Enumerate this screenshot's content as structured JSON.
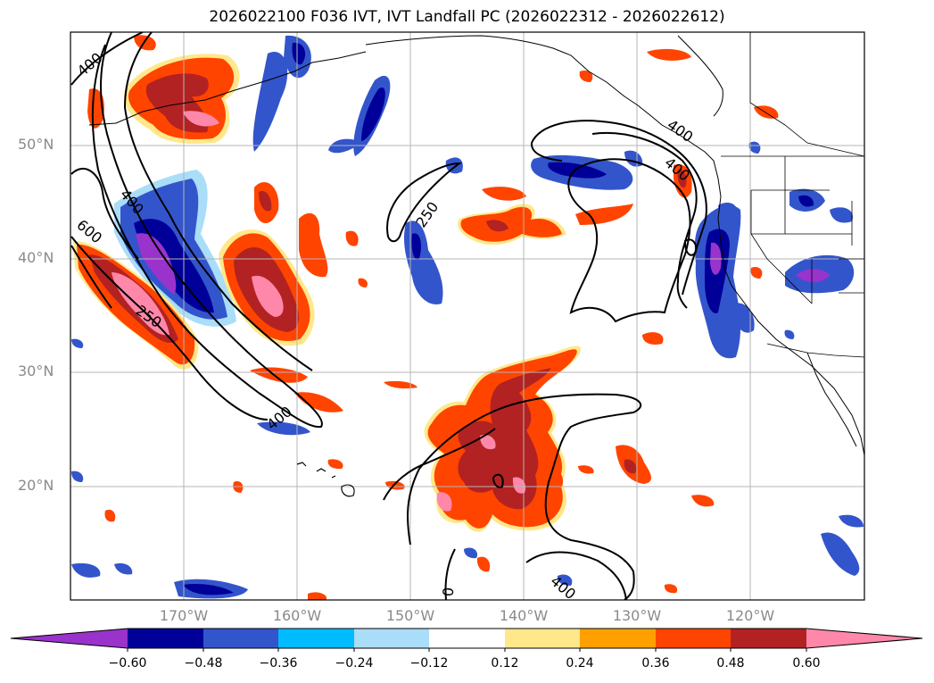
{
  "title": "2026022100 F036 IVT, IVT Landfall PC (2026022312 - 2026022612)",
  "lat_labels": [
    "50°N",
    "40°N",
    "30°N",
    "20°N"
  ],
  "lon_labels": [
    "170°W",
    "160°W",
    "150°W",
    "140°W",
    "130°W",
    "120°W"
  ],
  "contour_labels": [
    "400",
    "400",
    "600",
    "250",
    "250",
    "400",
    "400",
    "400",
    "0",
    "400",
    "250"
  ],
  "colorbar": {
    "ticks": [
      "−0.60",
      "−0.48",
      "−0.36",
      "−0.24",
      "−0.12",
      "0.12",
      "0.24",
      "0.36",
      "0.48",
      "0.60"
    ],
    "colors": {
      "lt_m060": "#9933cc",
      "m060_m048": "#000099",
      "m048_m036": "#3355cc",
      "m036_m024": "#00bbff",
      "m024_m012": "#aaddf8",
      "m012_012": "#ffffff",
      "p012_024": "#ffe88a",
      "p024_036": "#ffa000",
      "p036_048": "#ff4400",
      "p048_060": "#b22222",
      "gt_060": "#ff88aa"
    }
  }
}
